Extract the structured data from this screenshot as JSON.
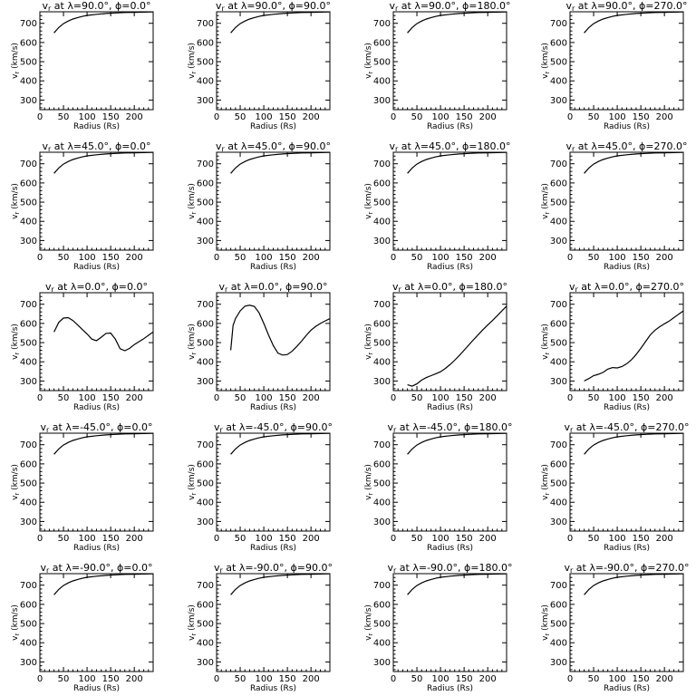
{
  "chart_data": [
    {
      "type": "line",
      "title": "v_r at λ=90.0°, ϕ=0.0°",
      "title_parts": {
        "lat": "90.0",
        "lon": "0.0"
      },
      "xlabel": "Radius (Rs)",
      "ylabel": "v_r (km/s)",
      "xlim": [
        0,
        240
      ],
      "ylim": [
        250,
        760
      ],
      "xticks": [
        0,
        50,
        100,
        150,
        200
      ],
      "yticks": [
        300,
        400,
        500,
        600,
        700
      ],
      "x": [
        30,
        40,
        50,
        60,
        70,
        80,
        90,
        100,
        120,
        140,
        160,
        180,
        200,
        220,
        240
      ],
      "y": [
        650,
        678,
        698,
        712,
        722,
        730,
        736,
        741,
        747,
        751,
        754,
        756,
        757,
        758,
        759
      ]
    },
    {
      "type": "line",
      "title": "v_r at λ=90.0°, ϕ=90.0°",
      "title_parts": {
        "lat": "90.0",
        "lon": "90.0"
      },
      "xlabel": "Radius (Rs)",
      "ylabel": "v_r (km/s)",
      "xlim": [
        0,
        240
      ],
      "ylim": [
        250,
        760
      ],
      "xticks": [
        0,
        50,
        100,
        150,
        200
      ],
      "yticks": [
        300,
        400,
        500,
        600,
        700
      ],
      "x": [
        30,
        40,
        50,
        60,
        70,
        80,
        90,
        100,
        120,
        140,
        160,
        180,
        200,
        220,
        240
      ],
      "y": [
        650,
        678,
        698,
        712,
        722,
        730,
        736,
        741,
        747,
        751,
        754,
        756,
        757,
        758,
        759
      ]
    },
    {
      "type": "line",
      "title": "v_r at λ=90.0°, ϕ=180.0°",
      "title_parts": {
        "lat": "90.0",
        "lon": "180.0"
      },
      "xlabel": "Radius (Rs)",
      "ylabel": "v_r (km/s)",
      "xlim": [
        0,
        240
      ],
      "ylim": [
        250,
        760
      ],
      "xticks": [
        0,
        50,
        100,
        150,
        200
      ],
      "yticks": [
        300,
        400,
        500,
        600,
        700
      ],
      "x": [
        30,
        40,
        50,
        60,
        70,
        80,
        90,
        100,
        120,
        140,
        160,
        180,
        200,
        220,
        240
      ],
      "y": [
        650,
        678,
        698,
        712,
        722,
        730,
        736,
        741,
        747,
        751,
        754,
        756,
        757,
        758,
        759
      ]
    },
    {
      "type": "line",
      "title": "v_r at λ=90.0°, ϕ=270.0°",
      "title_parts": {
        "lat": "90.0",
        "lon": "270.0"
      },
      "xlabel": "Radius (Rs)",
      "ylabel": "v_r (km/s)",
      "xlim": [
        0,
        240
      ],
      "ylim": [
        250,
        760
      ],
      "xticks": [
        0,
        50,
        100,
        150,
        200
      ],
      "yticks": [
        300,
        400,
        500,
        600,
        700
      ],
      "x": [
        30,
        40,
        50,
        60,
        70,
        80,
        90,
        100,
        120,
        140,
        160,
        180,
        200,
        220,
        240
      ],
      "y": [
        650,
        678,
        698,
        712,
        722,
        730,
        736,
        741,
        747,
        751,
        754,
        756,
        757,
        758,
        759
      ]
    },
    {
      "type": "line",
      "title": "v_r at λ=45.0°, ϕ=0.0°",
      "title_parts": {
        "lat": "45.0",
        "lon": "0.0"
      },
      "xlabel": "Radius (Rs)",
      "ylabel": "v_r (km/s)",
      "xlim": [
        0,
        240
      ],
      "ylim": [
        250,
        760
      ],
      "xticks": [
        0,
        50,
        100,
        150,
        200
      ],
      "yticks": [
        300,
        400,
        500,
        600,
        700
      ],
      "x": [
        30,
        40,
        50,
        60,
        70,
        80,
        90,
        100,
        120,
        140,
        160,
        180,
        200,
        220,
        240
      ],
      "y": [
        650,
        678,
        698,
        712,
        722,
        730,
        736,
        741,
        747,
        751,
        754,
        756,
        757,
        758,
        759
      ]
    },
    {
      "type": "line",
      "title": "v_r at λ=45.0°, ϕ=90.0°",
      "title_parts": {
        "lat": "45.0",
        "lon": "90.0"
      },
      "xlabel": "Radius (Rs)",
      "ylabel": "v_r (km/s)",
      "xlim": [
        0,
        240
      ],
      "ylim": [
        250,
        760
      ],
      "xticks": [
        0,
        50,
        100,
        150,
        200
      ],
      "yticks": [
        300,
        400,
        500,
        600,
        700
      ],
      "x": [
        30,
        40,
        50,
        60,
        70,
        80,
        90,
        100,
        120,
        140,
        160,
        180,
        200,
        220,
        240
      ],
      "y": [
        650,
        678,
        698,
        712,
        722,
        730,
        736,
        741,
        747,
        751,
        754,
        756,
        757,
        758,
        759
      ]
    },
    {
      "type": "line",
      "title": "v_r at λ=45.0°, ϕ=180.0°",
      "title_parts": {
        "lat": "45.0",
        "lon": "180.0"
      },
      "xlabel": "Radius (Rs)",
      "ylabel": "v_r (km/s)",
      "xlim": [
        0,
        240
      ],
      "ylim": [
        250,
        760
      ],
      "xticks": [
        0,
        50,
        100,
        150,
        200
      ],
      "yticks": [
        300,
        400,
        500,
        600,
        700
      ],
      "x": [
        30,
        40,
        50,
        60,
        70,
        80,
        90,
        100,
        120,
        140,
        160,
        180,
        200,
        220,
        240
      ],
      "y": [
        650,
        678,
        698,
        712,
        722,
        730,
        736,
        741,
        747,
        751,
        754,
        756,
        757,
        758,
        759
      ]
    },
    {
      "type": "line",
      "title": "v_r at λ=45.0°, ϕ=270.0°",
      "title_parts": {
        "lat": "45.0",
        "lon": "270.0"
      },
      "xlabel": "Radius (Rs)",
      "ylabel": "v_r (km/s)",
      "xlim": [
        0,
        240
      ],
      "ylim": [
        250,
        760
      ],
      "xticks": [
        0,
        50,
        100,
        150,
        200
      ],
      "yticks": [
        300,
        400,
        500,
        600,
        700
      ],
      "x": [
        30,
        40,
        50,
        60,
        70,
        80,
        90,
        100,
        120,
        140,
        160,
        180,
        200,
        220,
        240
      ],
      "y": [
        650,
        678,
        698,
        712,
        722,
        730,
        736,
        741,
        747,
        751,
        754,
        756,
        757,
        758,
        759
      ]
    },
    {
      "type": "line",
      "title": "v_r at λ=0.0°, ϕ=0.0°",
      "title_parts": {
        "lat": "0.0",
        "lon": "0.0"
      },
      "xlabel": "Radius (Rs)",
      "ylabel": "v_r (km/s)",
      "xlim": [
        0,
        240
      ],
      "ylim": [
        250,
        760
      ],
      "xticks": [
        0,
        50,
        100,
        150,
        200
      ],
      "yticks": [
        300,
        400,
        500,
        600,
        700
      ],
      "x": [
        30,
        40,
        50,
        60,
        70,
        80,
        90,
        100,
        110,
        120,
        130,
        140,
        150,
        160,
        170,
        180,
        190,
        200,
        210,
        220,
        230,
        240
      ],
      "y": [
        555,
        605,
        628,
        630,
        615,
        592,
        568,
        545,
        518,
        510,
        528,
        548,
        550,
        518,
        468,
        458,
        470,
        490,
        505,
        520,
        538,
        555
      ]
    },
    {
      "type": "line",
      "title": "v_r at λ=0.0°, ϕ=90.0°",
      "title_parts": {
        "lat": "0.0",
        "lon": "90.0"
      },
      "xlabel": "Radius (Rs)",
      "ylabel": "v_r (km/s)",
      "xlim": [
        0,
        240
      ],
      "ylim": [
        250,
        760
      ],
      "xticks": [
        0,
        50,
        100,
        150,
        200
      ],
      "yticks": [
        300,
        400,
        500,
        600,
        700
      ],
      "x": [
        30,
        35,
        40,
        50,
        60,
        70,
        80,
        90,
        100,
        110,
        120,
        130,
        140,
        150,
        160,
        170,
        180,
        190,
        200,
        210,
        220,
        230,
        240
      ],
      "y": [
        460,
        590,
        625,
        665,
        690,
        695,
        688,
        655,
        600,
        540,
        485,
        445,
        435,
        438,
        455,
        480,
        508,
        538,
        565,
        585,
        600,
        613,
        625
      ]
    },
    {
      "type": "line",
      "title": "v_r at λ=0.0°, ϕ=180.0°",
      "title_parts": {
        "lat": "0.0",
        "lon": "180.0"
      },
      "xlabel": "Radius (Rs)",
      "ylabel": "v_r (km/s)",
      "xlim": [
        0,
        240
      ],
      "ylim": [
        250,
        760
      ],
      "xticks": [
        0,
        50,
        100,
        150,
        200
      ],
      "yticks": [
        300,
        400,
        500,
        600,
        700
      ],
      "x": [
        30,
        40,
        50,
        60,
        70,
        80,
        90,
        100,
        110,
        120,
        130,
        140,
        150,
        160,
        170,
        180,
        190,
        200,
        210,
        220,
        230,
        240
      ],
      "y": [
        280,
        273,
        285,
        305,
        318,
        328,
        338,
        348,
        365,
        385,
        408,
        433,
        460,
        488,
        515,
        542,
        568,
        592,
        615,
        640,
        665,
        690
      ]
    },
    {
      "type": "line",
      "title": "v_r at λ=0.0°, ϕ=270.0°",
      "title_parts": {
        "lat": "0.0",
        "lon": "270.0"
      },
      "xlabel": "Radius (Rs)",
      "ylabel": "v_r (km/s)",
      "xlim": [
        0,
        240
      ],
      "ylim": [
        250,
        760
      ],
      "xticks": [
        0,
        50,
        100,
        150,
        200
      ],
      "yticks": [
        300,
        400,
        500,
        600,
        700
      ],
      "x": [
        30,
        40,
        50,
        60,
        70,
        80,
        90,
        100,
        110,
        120,
        130,
        140,
        150,
        160,
        170,
        180,
        190,
        200,
        210,
        220,
        230,
        240
      ],
      "y": [
        300,
        313,
        328,
        335,
        345,
        362,
        370,
        368,
        375,
        390,
        410,
        438,
        470,
        505,
        540,
        565,
        583,
        598,
        612,
        630,
        648,
        665
      ]
    },
    {
      "type": "line",
      "title": "v_r at λ=-45.0°, ϕ=0.0°",
      "title_parts": {
        "lat": "-45.0",
        "lon": "0.0"
      },
      "xlabel": "Radius (Rs)",
      "ylabel": "v_r (km/s)",
      "xlim": [
        0,
        240
      ],
      "ylim": [
        250,
        760
      ],
      "xticks": [
        0,
        50,
        100,
        150,
        200
      ],
      "yticks": [
        300,
        400,
        500,
        600,
        700
      ],
      "x": [
        30,
        40,
        50,
        60,
        70,
        80,
        90,
        100,
        120,
        140,
        160,
        180,
        200,
        220,
        240
      ],
      "y": [
        650,
        678,
        698,
        712,
        722,
        730,
        736,
        741,
        747,
        751,
        754,
        756,
        757,
        758,
        759
      ]
    },
    {
      "type": "line",
      "title": "v_r at λ=-45.0°, ϕ=90.0°",
      "title_parts": {
        "lat": "-45.0",
        "lon": "90.0"
      },
      "xlabel": "Radius (Rs)",
      "ylabel": "v_r (km/s)",
      "xlim": [
        0,
        240
      ],
      "ylim": [
        250,
        760
      ],
      "xticks": [
        0,
        50,
        100,
        150,
        200
      ],
      "yticks": [
        300,
        400,
        500,
        600,
        700
      ],
      "x": [
        30,
        40,
        50,
        60,
        70,
        80,
        90,
        100,
        120,
        140,
        160,
        180,
        200,
        220,
        240
      ],
      "y": [
        650,
        678,
        698,
        712,
        722,
        730,
        736,
        741,
        747,
        751,
        754,
        756,
        757,
        758,
        759
      ]
    },
    {
      "type": "line",
      "title": "v_r at λ=-45.0°, ϕ=180.0°",
      "title_parts": {
        "lat": "-45.0",
        "lon": "180.0"
      },
      "xlabel": "Radius (Rs)",
      "ylabel": "v_r (km/s)",
      "xlim": [
        0,
        240
      ],
      "ylim": [
        250,
        760
      ],
      "xticks": [
        0,
        50,
        100,
        150,
        200
      ],
      "yticks": [
        300,
        400,
        500,
        600,
        700
      ],
      "x": [
        30,
        40,
        50,
        60,
        70,
        80,
        90,
        100,
        120,
        140,
        160,
        180,
        200,
        220,
        240
      ],
      "y": [
        650,
        678,
        698,
        712,
        722,
        730,
        736,
        741,
        747,
        751,
        754,
        756,
        757,
        758,
        759
      ]
    },
    {
      "type": "line",
      "title": "v_r at λ=-45.0°, ϕ=270.0°",
      "title_parts": {
        "lat": "-45.0",
        "lon": "270.0"
      },
      "xlabel": "Radius (Rs)",
      "ylabel": "v_r (km/s)",
      "xlim": [
        0,
        240
      ],
      "ylim": [
        250,
        760
      ],
      "xticks": [
        0,
        50,
        100,
        150,
        200
      ],
      "yticks": [
        300,
        400,
        500,
        600,
        700
      ],
      "x": [
        30,
        40,
        50,
        60,
        70,
        80,
        90,
        100,
        120,
        140,
        160,
        180,
        200,
        220,
        240
      ],
      "y": [
        650,
        678,
        698,
        712,
        722,
        730,
        736,
        741,
        747,
        751,
        754,
        756,
        757,
        758,
        759
      ]
    },
    {
      "type": "line",
      "title": "v_r at λ=-90.0°, ϕ=0.0°",
      "title_parts": {
        "lat": "-90.0",
        "lon": "0.0"
      },
      "xlabel": "Radius (Rs)",
      "ylabel": "v_r (km/s)",
      "xlim": [
        0,
        240
      ],
      "ylim": [
        250,
        760
      ],
      "xticks": [
        0,
        50,
        100,
        150,
        200
      ],
      "yticks": [
        300,
        400,
        500,
        600,
        700
      ],
      "x": [
        30,
        40,
        50,
        60,
        70,
        80,
        90,
        100,
        120,
        140,
        160,
        180,
        200,
        220,
        240
      ],
      "y": [
        650,
        678,
        698,
        712,
        722,
        730,
        736,
        741,
        747,
        751,
        754,
        756,
        757,
        758,
        759
      ]
    },
    {
      "type": "line",
      "title": "v_r at λ=-90.0°, ϕ=90.0°",
      "title_parts": {
        "lat": "-90.0",
        "lon": "90.0"
      },
      "xlabel": "Radius (Rs)",
      "ylabel": "v_r (km/s)",
      "xlim": [
        0,
        240
      ],
      "ylim": [
        250,
        760
      ],
      "xticks": [
        0,
        50,
        100,
        150,
        200
      ],
      "yticks": [
        300,
        400,
        500,
        600,
        700
      ],
      "x": [
        30,
        40,
        50,
        60,
        70,
        80,
        90,
        100,
        120,
        140,
        160,
        180,
        200,
        220,
        240
      ],
      "y": [
        650,
        678,
        698,
        712,
        722,
        730,
        736,
        741,
        747,
        751,
        754,
        756,
        757,
        758,
        759
      ]
    },
    {
      "type": "line",
      "title": "v_r at λ=-90.0°, ϕ=180.0°",
      "title_parts": {
        "lat": "-90.0",
        "lon": "180.0"
      },
      "xlabel": "Radius (Rs)",
      "ylabel": "v_r (km/s)",
      "xlim": [
        0,
        240
      ],
      "ylim": [
        250,
        760
      ],
      "xticks": [
        0,
        50,
        100,
        150,
        200
      ],
      "yticks": [
        300,
        400,
        500,
        600,
        700
      ],
      "x": [
        30,
        40,
        50,
        60,
        70,
        80,
        90,
        100,
        120,
        140,
        160,
        180,
        200,
        220,
        240
      ],
      "y": [
        650,
        678,
        698,
        712,
        722,
        730,
        736,
        741,
        747,
        751,
        754,
        756,
        757,
        758,
        759
      ]
    },
    {
      "type": "line",
      "title": "v_r at λ=-90.0°, ϕ=270.0°",
      "title_parts": {
        "lat": "-90.0",
        "lon": "270.0"
      },
      "xlabel": "Radius (Rs)",
      "ylabel": "v_r (km/s)",
      "xlim": [
        0,
        240
      ],
      "ylim": [
        250,
        760
      ],
      "xticks": [
        0,
        50,
        100,
        150,
        200
      ],
      "yticks": [
        300,
        400,
        500,
        600,
        700
      ],
      "x": [
        30,
        40,
        50,
        60,
        70,
        80,
        90,
        100,
        120,
        140,
        160,
        180,
        200,
        220,
        240
      ],
      "y": [
        650,
        678,
        698,
        712,
        722,
        730,
        736,
        741,
        747,
        751,
        754,
        756,
        757,
        758,
        759
      ]
    }
  ]
}
